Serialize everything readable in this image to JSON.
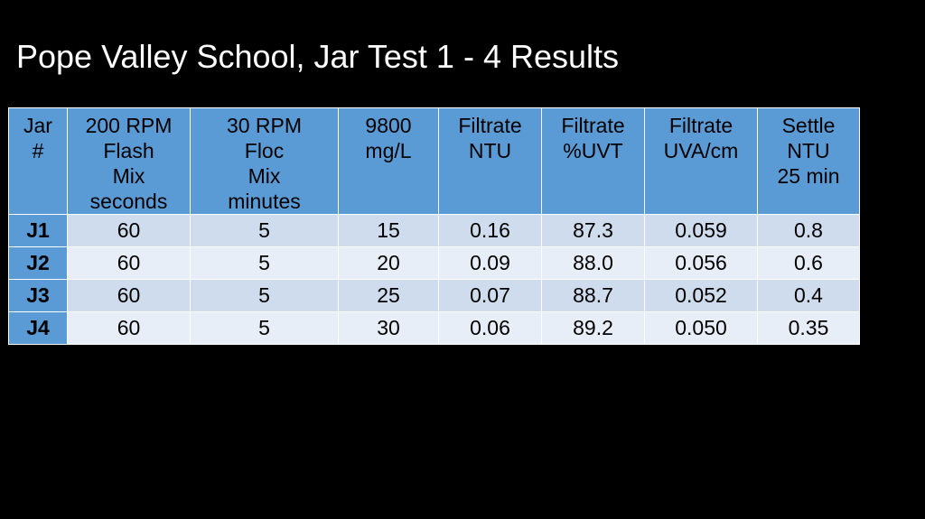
{
  "slide": {
    "title": "Pope Valley School, Jar Test 1 - 4 Results"
  },
  "table": {
    "headers": [
      [
        "Jar",
        "#"
      ],
      [
        "200 RPM",
        "Flash",
        "Mix",
        "seconds"
      ],
      [
        "30 RPM",
        "Floc",
        "Mix",
        "minutes"
      ],
      [
        "9800",
        "mg/L"
      ],
      [
        "Filtrate",
        "NTU"
      ],
      [
        "Filtrate",
        "%UVT"
      ],
      [
        "Filtrate",
        "UVA/cm"
      ],
      [
        "Settle",
        "NTU",
        "25 min"
      ]
    ],
    "rows": [
      [
        "J1",
        "60",
        "5",
        "15",
        "0.16",
        "87.3",
        "0.059",
        "0.8"
      ],
      [
        "J2",
        "60",
        "5",
        "20",
        "0.09",
        "88.0",
        "0.056",
        "0.6"
      ],
      [
        "J3",
        "60",
        "5",
        "25",
        "0.07",
        "88.7",
        "0.052",
        "0.4"
      ],
      [
        "J4",
        "60",
        "5",
        "30",
        "0.06",
        "89.2",
        "0.050",
        "0.35"
      ]
    ]
  },
  "colors": {
    "background": "#000000",
    "header_fill": "#5b9bd5",
    "row_band_dark": "#cfdced",
    "row_band_light": "#e8eef7"
  }
}
